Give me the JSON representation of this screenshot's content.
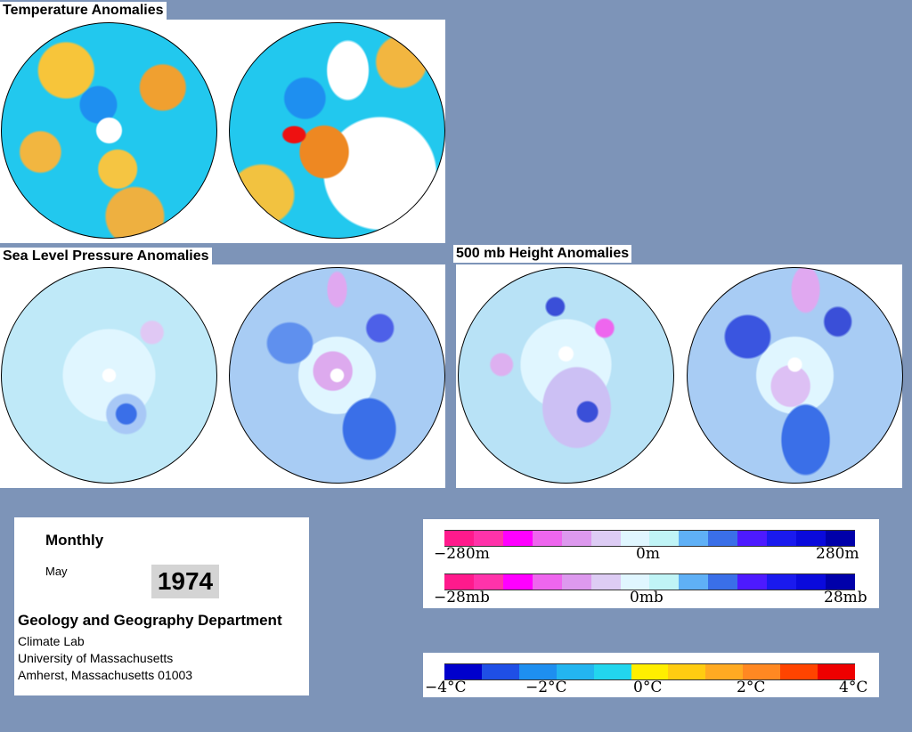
{
  "titles": {
    "temperature": "Temperature Anomalies",
    "slp": "Sea Level Pressure Anomalies",
    "height500": "500 mb Height Anomalies"
  },
  "info": {
    "period": "Monthly",
    "month": "May",
    "year": "1974",
    "department": "Geology and Geography Department",
    "lab": "Climate Lab",
    "university": "University of Massachusetts",
    "address": "Amherst, Massachusetts 01003"
  },
  "legends": {
    "height": {
      "left": "−280m",
      "center": "0m",
      "right": "280m"
    },
    "pressure": {
      "left": "−28mb",
      "center": "0mb",
      "right": "28mb"
    },
    "temperature": [
      "−4°C",
      "−2°C",
      "0°C",
      "2°C",
      "4°C"
    ]
  },
  "colors": {
    "background": "#7d94b8",
    "anomaly_scale": [
      "#ff1a8c",
      "#ff33aa",
      "#ff00ff",
      "#ee66ee",
      "#dd99ee",
      "#ddccf4",
      "#e0f6ff",
      "#c0f4f6",
      "#5fb0f6",
      "#3a6fe8",
      "#4d1aff",
      "#1a1aee",
      "#0a0adc",
      "#0000aa"
    ],
    "temperature_scale": [
      "#0000cc",
      "#1f4fe6",
      "#1e8ff0",
      "#23b5f0",
      "#22d6ee",
      "#ffee00",
      "#ffcc11",
      "#ffaa22",
      "#ff8822",
      "#ff4400",
      "#ee0000"
    ]
  }
}
